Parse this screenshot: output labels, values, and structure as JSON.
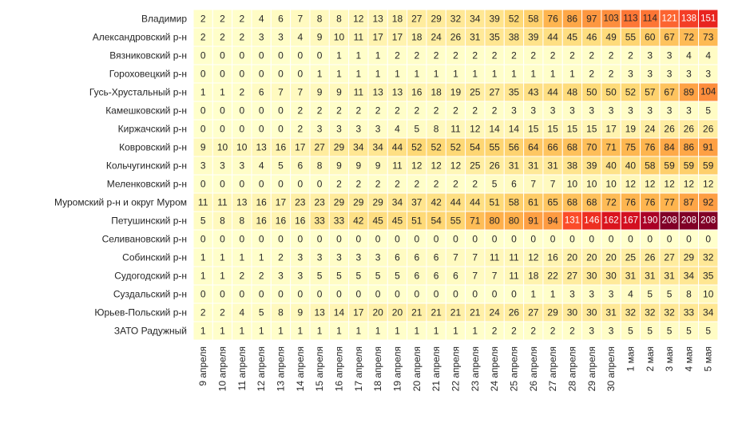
{
  "chart_data": {
    "type": "heatmap",
    "title": "",
    "xlabel": "",
    "ylabel": "",
    "colormap": "YlOrRd",
    "color_range": [
      0,
      208
    ],
    "x": [
      "9 апреля",
      "10 апреля",
      "11 апреля",
      "12 апреля",
      "13 апреля",
      "14 апреля",
      "15 апреля",
      "16 апреля",
      "17 апреля",
      "18 апреля",
      "19 апреля",
      "20 апреля",
      "21 апреля",
      "22 апреля",
      "23 апреля",
      "24 апреля",
      "25 апреля",
      "26 апреля",
      "27 апреля",
      "28 апреля",
      "29 апреля",
      "30 апреля",
      "1 мая",
      "2 мая",
      "3 мая",
      "4 мая",
      "5 мая"
    ],
    "y": [
      "Владимир",
      "Александровский р-н",
      "Вязниковский р-н",
      "Гороховецкий р-н",
      "Гусь-Хрустальный р-н",
      "Камешковский р-н",
      "Киржачский р-н",
      "Ковровский р-н",
      "Кольчугинский р-н",
      "Меленковский р-н",
      "Муромский р-н и округ Муром",
      "Петушинский р-н",
      "Селивановский р-н",
      "Собинский р-н",
      "Судогодский р-н",
      "Суздальский р-н",
      "Юрьев-Польский р-н",
      "ЗАТО Радужный"
    ],
    "values": [
      [
        2,
        2,
        2,
        4,
        6,
        7,
        8,
        8,
        12,
        13,
        18,
        27,
        29,
        32,
        34,
        39,
        52,
        58,
        76,
        86,
        97,
        103,
        113,
        114,
        121,
        138,
        151
      ],
      [
        2,
        2,
        2,
        3,
        3,
        4,
        9,
        10,
        11,
        17,
        17,
        18,
        24,
        26,
        31,
        35,
        38,
        39,
        44,
        45,
        46,
        49,
        55,
        60,
        67,
        72,
        73
      ],
      [
        0,
        0,
        0,
        0,
        0,
        0,
        0,
        1,
        1,
        1,
        2,
        2,
        2,
        2,
        2,
        2,
        2,
        2,
        2,
        2,
        2,
        2,
        2,
        3,
        3,
        4,
        4
      ],
      [
        0,
        0,
        0,
        0,
        0,
        0,
        1,
        1,
        1,
        1,
        1,
        1,
        1,
        1,
        1,
        1,
        1,
        1,
        1,
        1,
        2,
        2,
        3,
        3,
        3,
        3,
        3
      ],
      [
        1,
        1,
        2,
        6,
        7,
        7,
        9,
        9,
        11,
        13,
        13,
        16,
        18,
        19,
        25,
        27,
        35,
        43,
        44,
        48,
        50,
        50,
        52,
        57,
        67,
        89,
        104
      ],
      [
        0,
        0,
        0,
        0,
        0,
        2,
        2,
        2,
        2,
        2,
        2,
        2,
        2,
        2,
        2,
        2,
        3,
        3,
        3,
        3,
        3,
        3,
        3,
        3,
        3,
        3,
        5
      ],
      [
        0,
        0,
        0,
        0,
        0,
        2,
        3,
        3,
        3,
        3,
        4,
        5,
        8,
        11,
        12,
        14,
        14,
        15,
        15,
        15,
        15,
        17,
        19,
        24,
        26,
        26,
        26
      ],
      [
        9,
        10,
        10,
        13,
        16,
        17,
        27,
        29,
        34,
        34,
        44,
        52,
        52,
        52,
        54,
        55,
        56,
        64,
        66,
        68,
        70,
        71,
        75,
        76,
        84,
        86,
        91
      ],
      [
        3,
        3,
        3,
        4,
        5,
        6,
        8,
        9,
        9,
        9,
        11,
        12,
        12,
        12,
        25,
        26,
        31,
        31,
        31,
        38,
        39,
        40,
        40,
        58,
        59,
        59,
        59
      ],
      [
        0,
        0,
        0,
        0,
        0,
        0,
        0,
        2,
        2,
        2,
        2,
        2,
        2,
        2,
        2,
        5,
        6,
        7,
        7,
        10,
        10,
        10,
        12,
        12,
        12,
        12,
        12
      ],
      [
        11,
        11,
        13,
        16,
        17,
        23,
        23,
        29,
        29,
        29,
        34,
        37,
        42,
        44,
        44,
        51,
        58,
        61,
        65,
        68,
        68,
        72,
        76,
        76,
        77,
        87,
        92
      ],
      [
        5,
        8,
        8,
        16,
        16,
        16,
        33,
        33,
        42,
        45,
        45,
        51,
        54,
        55,
        71,
        80,
        80,
        91,
        94,
        131,
        146,
        162,
        167,
        190,
        208,
        208,
        208
      ],
      [
        0,
        0,
        0,
        0,
        0,
        0,
        0,
        0,
        0,
        0,
        0,
        0,
        0,
        0,
        0,
        0,
        0,
        0,
        0,
        0,
        0,
        0,
        0,
        0,
        0,
        0,
        0
      ],
      [
        1,
        1,
        1,
        1,
        2,
        3,
        3,
        3,
        3,
        3,
        6,
        6,
        6,
        7,
        7,
        11,
        11,
        12,
        16,
        20,
        20,
        20,
        25,
        26,
        27,
        29,
        32
      ],
      [
        1,
        1,
        2,
        2,
        3,
        3,
        5,
        5,
        5,
        5,
        5,
        6,
        6,
        6,
        7,
        7,
        11,
        18,
        22,
        27,
        30,
        30,
        31,
        31,
        31,
        34,
        35
      ],
      [
        0,
        0,
        0,
        0,
        0,
        0,
        0,
        0,
        0,
        0,
        0,
        0,
        0,
        0,
        0,
        0,
        0,
        1,
        1,
        3,
        3,
        3,
        4,
        5,
        5,
        8,
        10
      ],
      [
        2,
        2,
        4,
        5,
        8,
        9,
        13,
        14,
        17,
        20,
        20,
        21,
        21,
        21,
        21,
        24,
        26,
        27,
        29,
        30,
        30,
        31,
        32,
        32,
        32,
        33,
        34
      ],
      [
        1,
        1,
        1,
        1,
        1,
        1,
        1,
        1,
        1,
        1,
        1,
        1,
        1,
        1,
        1,
        2,
        2,
        2,
        2,
        2,
        3,
        3,
        5,
        5,
        5,
        5,
        5
      ]
    ]
  }
}
